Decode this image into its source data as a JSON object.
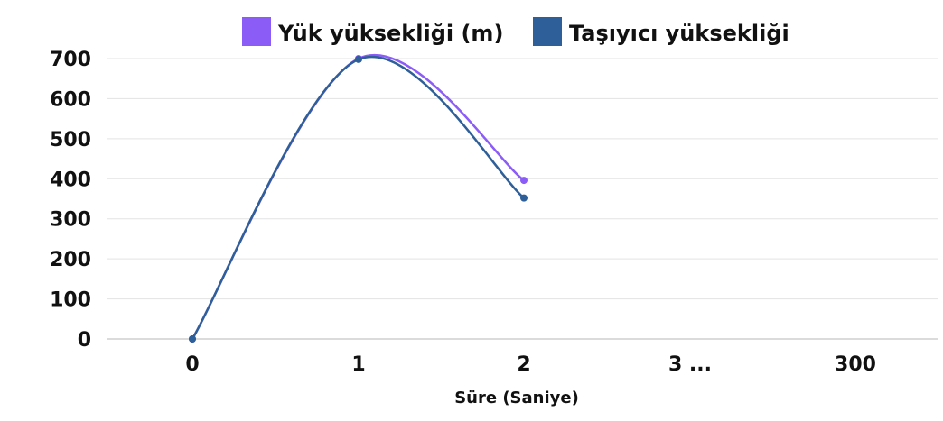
{
  "chart_data": {
    "type": "line",
    "categories": [
      "0",
      "1",
      "2",
      "3 ...",
      "300"
    ],
    "xlabel": "Süre (Saniye)",
    "ylabel": "",
    "ylim": [
      0,
      700
    ],
    "yticks": [
      0,
      100,
      200,
      300,
      400,
      500,
      600,
      700
    ],
    "grid": true,
    "legend_position": "top",
    "series": [
      {
        "name": "Yük yüksekliği (m)",
        "color": "#8b5cf6",
        "values": [
          0,
          700,
          396,
          null,
          null
        ]
      },
      {
        "name": "Taşıyıcı yüksekliği",
        "color": "#2e5f99",
        "values": [
          0,
          698,
          352,
          null,
          null
        ]
      }
    ]
  }
}
